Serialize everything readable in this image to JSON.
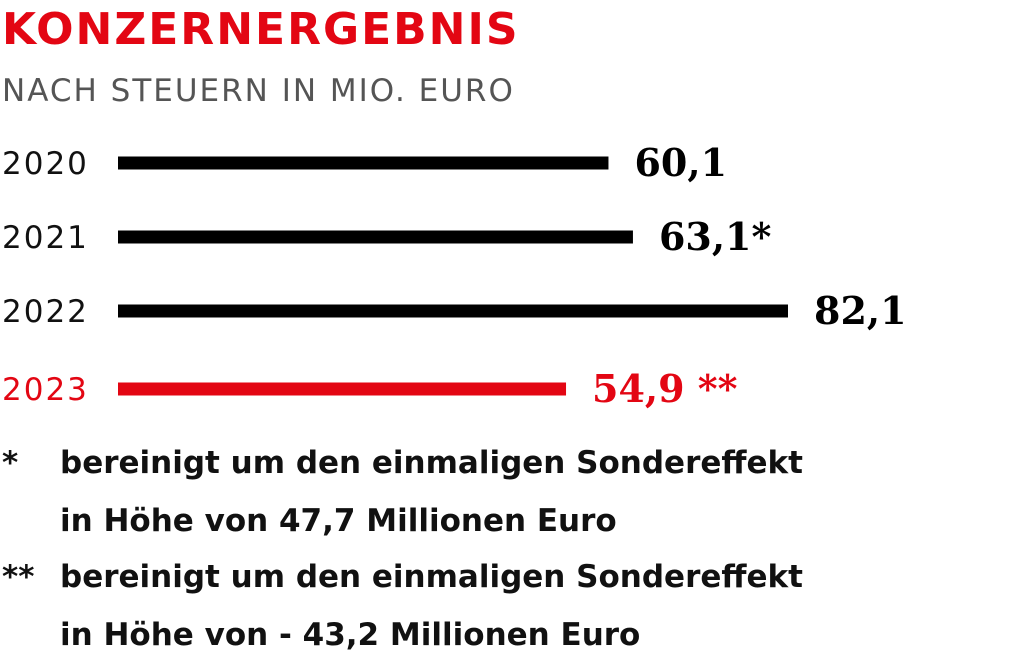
{
  "header": {
    "title": "KONZERNERGEBNIS",
    "subtitle": "NACH STEUERN IN MIO. EURO"
  },
  "colors": {
    "normal": "#000000",
    "highlight": "#e30613"
  },
  "chart_data": {
    "type": "bar",
    "orientation": "horizontal",
    "title": "KONZERNERGEBNIS",
    "subtitle": "NACH STEUERN IN MIO. EURO",
    "categories": [
      "2020",
      "2021",
      "2022",
      "2023"
    ],
    "values": [
      60.1,
      63.1,
      82.1,
      54.9
    ],
    "labels": [
      "60,1",
      "63,1*",
      "82,1",
      "54,9 **"
    ],
    "highlight": [
      false,
      false,
      false,
      true
    ],
    "xlim": [
      0,
      82.1
    ],
    "grid": false,
    "legend": "none"
  },
  "footnotes": [
    {
      "mark": "*",
      "lines": [
        "bereinigt um den einmaligen Sondereffekt",
        "in Höhe von 47,7 Millionen Euro"
      ]
    },
    {
      "mark": "**",
      "lines": [
        "bereinigt um den einmaligen Sondereffekt",
        "in Höhe von - 43,2 Millionen Euro"
      ]
    }
  ]
}
